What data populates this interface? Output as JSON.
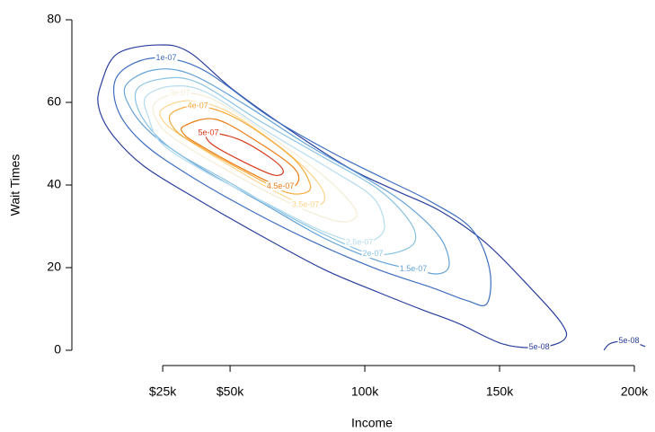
{
  "chart_data": {
    "type": "contour",
    "x_label": "Income",
    "y_label": "Wait Times",
    "xlim": [
      -8.7,
      207
    ],
    "ylim": [
      -3.7,
      83.7
    ],
    "xticks": [
      {
        "value": 25,
        "label": "$25k"
      },
      {
        "value": 50,
        "label": "$50k"
      },
      {
        "value": 100,
        "label": "100k"
      },
      {
        "value": 150,
        "label": "150k"
      },
      {
        "value": 200,
        "label": "200k"
      }
    ],
    "yticks": [
      0,
      20,
      40,
      60,
      80
    ],
    "series": [
      {
        "name": "5e-08",
        "color": "#2a3f9d",
        "x": [
          2,
          8,
          23,
          34.7,
          51.3,
          74.7,
          94.7,
          111.3,
          128,
          144.7,
          161.3,
          173,
          174,
          164.7,
          151.3,
          134.7,
          121.3,
          104.7,
          84.7,
          61.3,
          38,
          18,
          6.3,
          1.3
        ],
        "y": [
          64.1,
          71.7,
          73.9,
          72.2,
          63,
          52.2,
          43.9,
          38.7,
          33.7,
          26.1,
          15.2,
          6.5,
          2.6,
          0.7,
          1.5,
          6.5,
          9.8,
          14.1,
          19.6,
          27.8,
          36.5,
          44.6,
          52.2,
          58.7
        ]
      },
      {
        "name": "1e-07",
        "color": "#3f6fc0",
        "x": [
          7.3,
          14.7,
          26.3,
          41.3,
          64.7,
          88,
          108,
          124.7,
          139.7,
          146.3,
          145.3,
          138,
          124.7,
          104.7,
          81.3,
          58,
          34.7,
          18,
          8.7
        ],
        "y": [
          65.2,
          69.6,
          70.7,
          67.4,
          56.5,
          47.8,
          41.3,
          35.9,
          29.3,
          19.6,
          11.3,
          12,
          15.2,
          19.6,
          26.1,
          33.7,
          42.4,
          50,
          57.6
        ]
      },
      {
        "name": "1.5e-07",
        "color": "#64a3d8",
        "x": [
          11.3,
          21.3,
          34.7,
          54.7,
          78,
          101.3,
          116.3,
          128,
          131.3,
          127.3,
          118,
          104.7,
          84.7,
          61.3,
          38,
          21.3,
          13
        ],
        "y": [
          64.1,
          67.8,
          67,
          59.8,
          50,
          41.3,
          34.8,
          27.2,
          20.7,
          18.5,
          19.6,
          21.7,
          27.2,
          35.9,
          44.6,
          52.2,
          58.7
        ]
      },
      {
        "name": "2e-07",
        "color": "#8ac3e3",
        "x": [
          15.3,
          24.7,
          38,
          61.3,
          84.7,
          104.7,
          116.3,
          118.7,
          113,
          103,
          91.3,
          71.3,
          48,
          28,
          17.3
        ],
        "y": [
          63,
          65.7,
          64.8,
          55.4,
          46.7,
          39.1,
          31.5,
          26.5,
          23.9,
          23.3,
          26.1,
          32.6,
          41.3,
          48.9,
          56.5
        ]
      },
      {
        "name": "2.5e-07",
        "color": "#b5dcee",
        "x": [
          18.7,
          28,
          41.3,
          64.7,
          88,
          103,
          107.3,
          104.7,
          98,
          84.7,
          64.7,
          41.3,
          24.7,
          19.7
        ],
        "y": [
          61.3,
          63.9,
          62.4,
          52.6,
          43.5,
          37,
          30.4,
          27.2,
          26.1,
          28.7,
          35.2,
          43,
          50,
          56.5
        ]
      },
      {
        "name": "3e-07",
        "color": "#f3ecd4",
        "x": [
          22,
          31.3,
          44.7,
          68,
          86.3,
          96.3,
          95.3,
          88,
          71.3,
          48,
          29.7,
          23
        ],
        "y": [
          59.8,
          62.2,
          60.4,
          50.4,
          41.3,
          34.3,
          31.5,
          31.5,
          35.9,
          43.9,
          51.1,
          55.4
        ]
      },
      {
        "name": "3.5e-07",
        "color": "#fdd58c",
        "x": [
          24.7,
          34.7,
          49.7,
          71.3,
          83,
          84.7,
          78,
          64.7,
          44.7,
          31.3,
          25.3
        ],
        "y": [
          58.3,
          60.4,
          57.6,
          47.8,
          40.2,
          35.9,
          35.2,
          39.1,
          46.7,
          52.2,
          55.4
        ]
      },
      {
        "name": "4e-07",
        "color": "#f5a93a",
        "x": [
          28,
          38,
          53,
          73,
          79.7,
          77.3,
          69.7,
          54.7,
          38,
          29.7
        ],
        "y": [
          57.2,
          59.1,
          55.9,
          46.7,
          40.2,
          38,
          38.5,
          43.5,
          49.6,
          53.3
        ]
      },
      {
        "name": "4.5e-07",
        "color": "#ec7c14",
        "x": [
          33,
          44.7,
          61.3,
          74,
          74.7,
          68.7,
          54.7,
          39.7,
          33
        ],
        "y": [
          54.3,
          55.9,
          50,
          43.9,
          40.2,
          39.6,
          43.9,
          49.3,
          52.2
        ]
      },
      {
        "name": "5e-07",
        "color": "#d63a1a",
        "x": [
          42,
          53,
          64.7,
          69.7,
          66.3,
          54.7,
          43
        ],
        "y": [
          52.6,
          51.1,
          46.7,
          43.5,
          42.4,
          45.7,
          50
        ]
      },
      {
        "name": "5e-08",
        "color": "#2a3f9d",
        "x": [
          188.7,
          191.3,
          198,
          204
        ],
        "y": [
          0,
          1.7,
          2.2,
          0.9
        ]
      }
    ]
  }
}
